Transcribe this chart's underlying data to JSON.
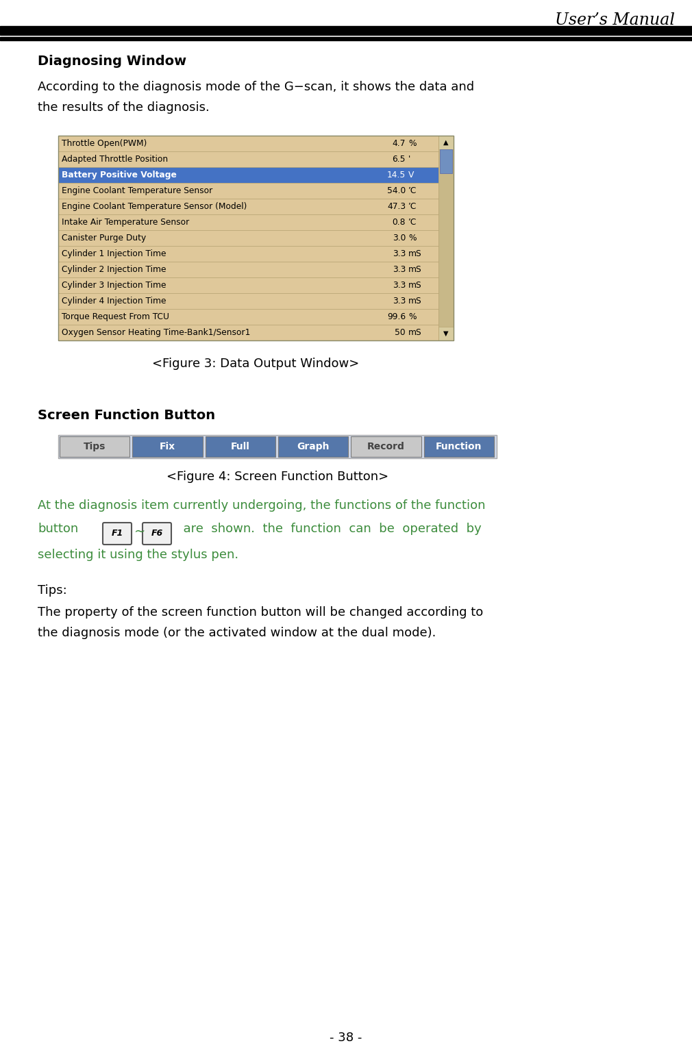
{
  "title": "User’s Manual",
  "page_number": "- 38 -",
  "section1_title": "Diagnosing Window",
  "section1_body1": "According to the diagnosis mode of the G−scan, it shows the data and",
  "section1_body2": "the results of the diagnosis.",
  "figure1_caption": "<Figure 3: Data Output Window>",
  "table_rows": [
    {
      "label": "Throttle Open(PWM)",
      "value": "4.7",
      "unit": "%",
      "highlighted": false
    },
    {
      "label": "Adapted Throttle Position",
      "value": "6.5",
      "unit": "'",
      "highlighted": false
    },
    {
      "label": "Battery Positive Voltage",
      "value": "14.5",
      "unit": "V",
      "highlighted": true
    },
    {
      "label": "Engine Coolant Temperature Sensor",
      "value": "54.0",
      "unit": "’C",
      "highlighted": false
    },
    {
      "label": "Engine Coolant Temperature Sensor (Model)",
      "value": "47.3",
      "unit": "’C",
      "highlighted": false
    },
    {
      "label": "Intake Air Temperature Sensor",
      "value": "0.8",
      "unit": "’C",
      "highlighted": false
    },
    {
      "label": "Canister Purge Duty",
      "value": "3.0",
      "unit": "%",
      "highlighted": false
    },
    {
      "label": "Cylinder 1 Injection Time",
      "value": "3.3",
      "unit": "mS",
      "highlighted": false
    },
    {
      "label": "Cylinder 2 Injection Time",
      "value": "3.3",
      "unit": "mS",
      "highlighted": false
    },
    {
      "label": "Cylinder 3 Injection Time",
      "value": "3.3",
      "unit": "mS",
      "highlighted": false
    },
    {
      "label": "Cylinder 4 Injection Time",
      "value": "3.3",
      "unit": "mS",
      "highlighted": false
    },
    {
      "label": "Torque Request From TCU",
      "value": "99.6",
      "unit": "%",
      "highlighted": false
    },
    {
      "label": "Oxygen Sensor Heating Time-Bank1/Sensor1",
      "value": "50",
      "unit": "mS",
      "highlighted": false
    }
  ],
  "table_bg": "#dfc89a",
  "table_highlight": "#4472c4",
  "table_border": "#b8a472",
  "scrollbar_bg": "#c8b888",
  "scrollbar_thumb": "#7090c0",
  "section2_title": "Screen Function Button",
  "figure2_buttons": [
    {
      "label": "Tips",
      "style": "light"
    },
    {
      "label": "Fix",
      "style": "blue"
    },
    {
      "label": "Full",
      "style": "blue"
    },
    {
      "label": "Graph",
      "style": "blue"
    },
    {
      "label": "Record",
      "style": "light"
    },
    {
      "label": "Function",
      "style": "blue"
    }
  ],
  "figure2_caption": "<Figure 4: Screen Function Button>",
  "body2_line1": "At the diagnosis item currently undergoing, the functions of the function",
  "body2_word_button": "button",
  "body2_line2": "  are  shown.  the  function  can  be  operated  by",
  "body2_line3": "selecting it using the stylus pen.",
  "tips_label": "Tips:",
  "tips_body1": "The property of the screen function button will be changed according to",
  "tips_body2": "the diagnosis mode (or the activated window at the dual mode).",
  "green_color": "#3c8c3c",
  "btn_blue": "#5577aa",
  "btn_light": "#c8c8c8",
  "btn_border": "#7a7a7a",
  "btn_text_blue": "#ffffff",
  "btn_text_light": "#444444",
  "btn_bar_bg": "#d0d8e8",
  "page_bg": "#ffffff"
}
